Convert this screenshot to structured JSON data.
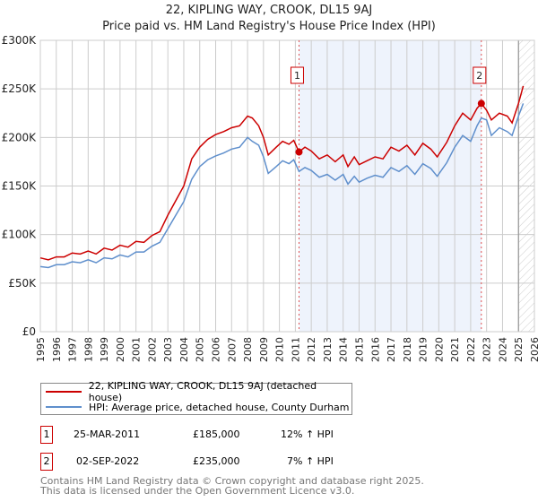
{
  "chart_data": {
    "type": "line",
    "title": "22, KIPLING WAY, CROOK, DL15 9AJ",
    "subtitle": "Price paid vs. HM Land Registry's House Price Index (HPI)",
    "xlim": [
      1995,
      2026
    ],
    "ylim": [
      0,
      300000
    ],
    "x_ticks": [
      "1995",
      "1996",
      "1997",
      "1998",
      "1999",
      "2000",
      "2001",
      "2002",
      "2003",
      "2004",
      "2005",
      "2006",
      "2007",
      "2008",
      "2009",
      "2010",
      "2011",
      "2012",
      "2013",
      "2014",
      "2015",
      "2016",
      "2017",
      "2018",
      "2019",
      "2020",
      "2021",
      "2022",
      "2023",
      "2024",
      "2025",
      "2026"
    ],
    "y_ticks": [
      {
        "v": 0,
        "label": "£0"
      },
      {
        "v": 50000,
        "label": "£50K"
      },
      {
        "v": 100000,
        "label": "£100K"
      },
      {
        "v": 150000,
        "label": "£150K"
      },
      {
        "v": 200000,
        "label": "£200K"
      },
      {
        "v": 250000,
        "label": "£250K"
      },
      {
        "v": 300000,
        "label": "£300K"
      }
    ],
    "grid": true,
    "shaded_range": [
      2011.23,
      2022.67
    ],
    "hatched_from": 2025.0,
    "series": [
      {
        "name": "22, KIPLING WAY, CROOK, DL15 9AJ (detached house)",
        "color": "#cc0000",
        "x": [
          1995,
          1995.5,
          1996,
          1996.5,
          1997,
          1997.5,
          1998,
          1998.5,
          1999,
          1999.5,
          2000,
          2000.5,
          2001,
          2001.5,
          2002,
          2002.5,
          2003,
          2003.5,
          2004,
          2004.5,
          2005,
          2005.5,
          2006,
          2006.5,
          2007,
          2007.5,
          2008,
          2008.3,
          2008.7,
          2009,
          2009.3,
          2009.8,
          2010.2,
          2010.6,
          2010.9,
          2011.23,
          2011.6,
          2012,
          2012.5,
          2013,
          2013.5,
          2014,
          2014.3,
          2014.7,
          2015,
          2015.5,
          2016,
          2016.5,
          2017,
          2017.5,
          2018,
          2018.5,
          2019,
          2019.5,
          2019.9,
          2020.5,
          2021,
          2021.5,
          2022,
          2022.4,
          2022.67,
          2023,
          2023.3,
          2023.8,
          2024.3,
          2024.6,
          2025,
          2025.3
        ],
        "y": [
          76000,
          74000,
          77000,
          77000,
          81000,
          80000,
          83000,
          80000,
          86000,
          84000,
          89000,
          87000,
          93000,
          92000,
          99000,
          103000,
          120000,
          135000,
          150000,
          178000,
          190000,
          198000,
          203000,
          206000,
          210000,
          212000,
          222000,
          220000,
          212000,
          200000,
          182000,
          190000,
          196000,
          193000,
          197000,
          185000,
          190000,
          186000,
          178000,
          182000,
          175000,
          182000,
          170000,
          180000,
          172000,
          176000,
          180000,
          178000,
          190000,
          186000,
          192000,
          182000,
          194000,
          188000,
          180000,
          195000,
          212000,
          225000,
          218000,
          230000,
          235000,
          228000,
          218000,
          225000,
          222000,
          215000,
          235000,
          253000
        ]
      },
      {
        "name": "HPI: Average price, detached house, County Durham",
        "color": "#5f8fcc",
        "x": [
          1995,
          1995.5,
          1996,
          1996.5,
          1997,
          1997.5,
          1998,
          1998.5,
          1999,
          1999.5,
          2000,
          2000.5,
          2001,
          2001.5,
          2002,
          2002.5,
          2003,
          2003.5,
          2004,
          2004.5,
          2005,
          2005.5,
          2006,
          2006.5,
          2007,
          2007.5,
          2008,
          2008.3,
          2008.7,
          2009,
          2009.3,
          2009.8,
          2010.2,
          2010.6,
          2010.9,
          2011.23,
          2011.6,
          2012,
          2012.5,
          2013,
          2013.5,
          2014,
          2014.3,
          2014.7,
          2015,
          2015.5,
          2016,
          2016.5,
          2017,
          2017.5,
          2018,
          2018.5,
          2019,
          2019.5,
          2019.9,
          2020.5,
          2021,
          2021.5,
          2022,
          2022.4,
          2022.67,
          2023,
          2023.3,
          2023.8,
          2024.3,
          2024.6,
          2025,
          2025.3
        ],
        "y": [
          67000,
          66000,
          69000,
          69000,
          72000,
          71000,
          74000,
          71000,
          76000,
          75000,
          79000,
          77000,
          82000,
          82000,
          88000,
          92000,
          106000,
          120000,
          134000,
          157000,
          170000,
          177000,
          181000,
          184000,
          188000,
          190000,
          200000,
          196000,
          192000,
          180000,
          163000,
          170000,
          176000,
          173000,
          177000,
          165000,
          169000,
          166000,
          159000,
          162000,
          156000,
          162000,
          152000,
          160000,
          154000,
          158000,
          161000,
          159000,
          169000,
          165000,
          171000,
          162000,
          173000,
          168000,
          160000,
          174000,
          190000,
          202000,
          196000,
          212000,
          220000,
          218000,
          202000,
          210000,
          206000,
          202000,
          222000,
          235000
        ]
      }
    ],
    "sales": [
      {
        "id": "1",
        "x": 2011.23,
        "y": 185000
      },
      {
        "id": "2",
        "x": 2022.67,
        "y": 235000
      }
    ]
  },
  "legend": {
    "red": "22, KIPLING WAY, CROOK, DL15 9AJ (detached house)",
    "blue": "HPI: Average price, detached house, County Durham"
  },
  "transactions": [
    {
      "id": "1",
      "date": "25-MAR-2011",
      "price": "£185,000",
      "hpi": "12% ↑ HPI"
    },
    {
      "id": "2",
      "date": "02-SEP-2022",
      "price": "£235,000",
      "hpi": "7% ↑ HPI"
    }
  ],
  "footer": [
    "Contains HM Land Registry data © Crown copyright and database right 2025.",
    "This data is licensed under the Open Government Licence v3.0."
  ]
}
